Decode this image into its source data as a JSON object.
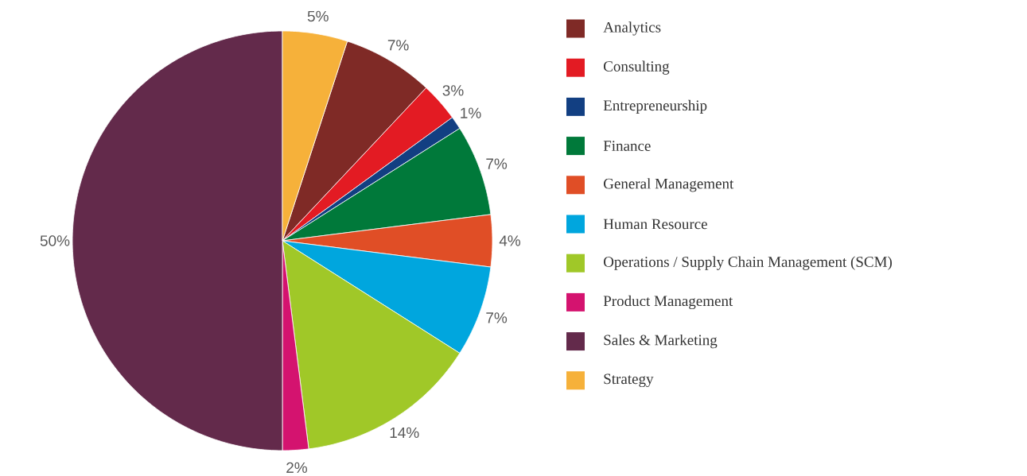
{
  "chart_data": {
    "type": "pie",
    "categories": [
      "Analytics",
      "Consulting",
      "Entrepreneurship",
      "Finance",
      "General Management",
      "Human Resource",
      "Operations / Supply Chain Management (SCM)",
      "Product Management",
      "Sales & Marketing",
      "Strategy"
    ],
    "values": [
      7,
      3,
      1,
      7,
      4,
      7,
      14,
      2,
      50,
      5
    ],
    "colors": [
      "#7f2a26",
      "#e31b23",
      "#123f82",
      "#00793a",
      "#e04e26",
      "#00a6de",
      "#a0c828",
      "#d4136f",
      "#632a4b",
      "#f6b13a"
    ],
    "value_labels": [
      "7%",
      "3%",
      "1%",
      "7%",
      "4%",
      "7%",
      "14%",
      "2%",
      "50%",
      "5%"
    ],
    "legend": "right"
  }
}
